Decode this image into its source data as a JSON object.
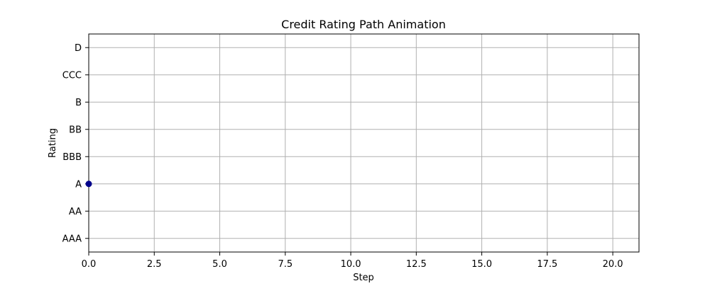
{
  "chart_data": {
    "type": "scatter",
    "title": "Credit Rating Path Animation",
    "xlabel": "Step",
    "ylabel": "Rating",
    "xlim": [
      0,
      21
    ],
    "x_ticks": [
      0.0,
      2.5,
      5.0,
      7.5,
      10.0,
      12.5,
      15.0,
      17.5,
      20.0
    ],
    "x_tick_labels": [
      "0.0",
      "2.5",
      "5.0",
      "7.5",
      "10.0",
      "12.5",
      "15.0",
      "17.5",
      "20.0"
    ],
    "categories_y": [
      "AAA",
      "AA",
      "A",
      "BBB",
      "BB",
      "B",
      "CCC",
      "D"
    ],
    "grid": true,
    "series": [
      {
        "color": "#00008b",
        "points": [
          {
            "x": 0,
            "y": "A"
          }
        ]
      }
    ]
  }
}
